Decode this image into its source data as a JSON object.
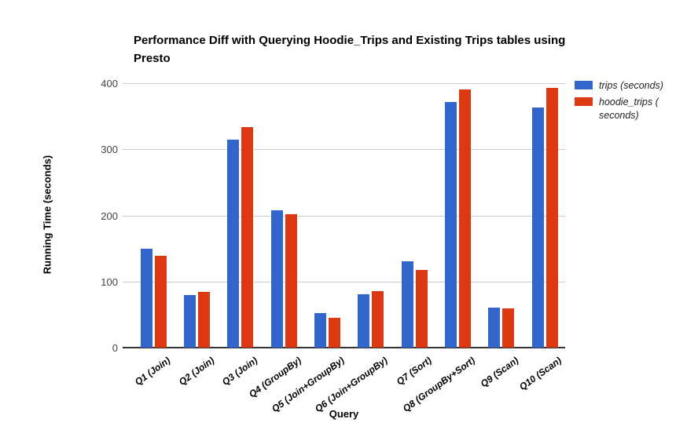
{
  "chart_data": {
    "type": "bar",
    "title": "Performance Diff with Querying Hoodie_Trips and Existing Trips tables using Presto",
    "xlabel": "Query",
    "ylabel": "Running Time (seconds)",
    "categories": [
      "Q1 (Join)",
      "Q2 (Join)",
      "Q3 (Join)",
      "Q4 (GroupBy)",
      "Q5 (Join+GroupBy)",
      "Q6 (Join+GroupBy)",
      "Q7 (Sort)",
      "Q8 (GroupBy+Sort)",
      "Q9 (Scan)",
      "Q10 (Scan)"
    ],
    "series": [
      {
        "name": "trips (seconds)",
        "color": "#3366CC",
        "values": [
          150,
          80,
          314,
          208,
          52,
          81,
          131,
          371,
          61,
          363
        ]
      },
      {
        "name": "hoodie_trips ( seconds)",
        "color": "#DC3912",
        "values": [
          139,
          84,
          333,
          202,
          45,
          85,
          117,
          390,
          59,
          393
        ]
      }
    ],
    "ylim": [
      0,
      400
    ],
    "yticks": [
      0,
      100,
      200,
      300,
      400
    ],
    "grid": true,
    "legend_position": "right",
    "colors": {
      "gridline": "#cccccc",
      "baseline": "#333333",
      "tick_text": "#444444",
      "label_text": "#000000",
      "background": "#ffffff"
    }
  }
}
